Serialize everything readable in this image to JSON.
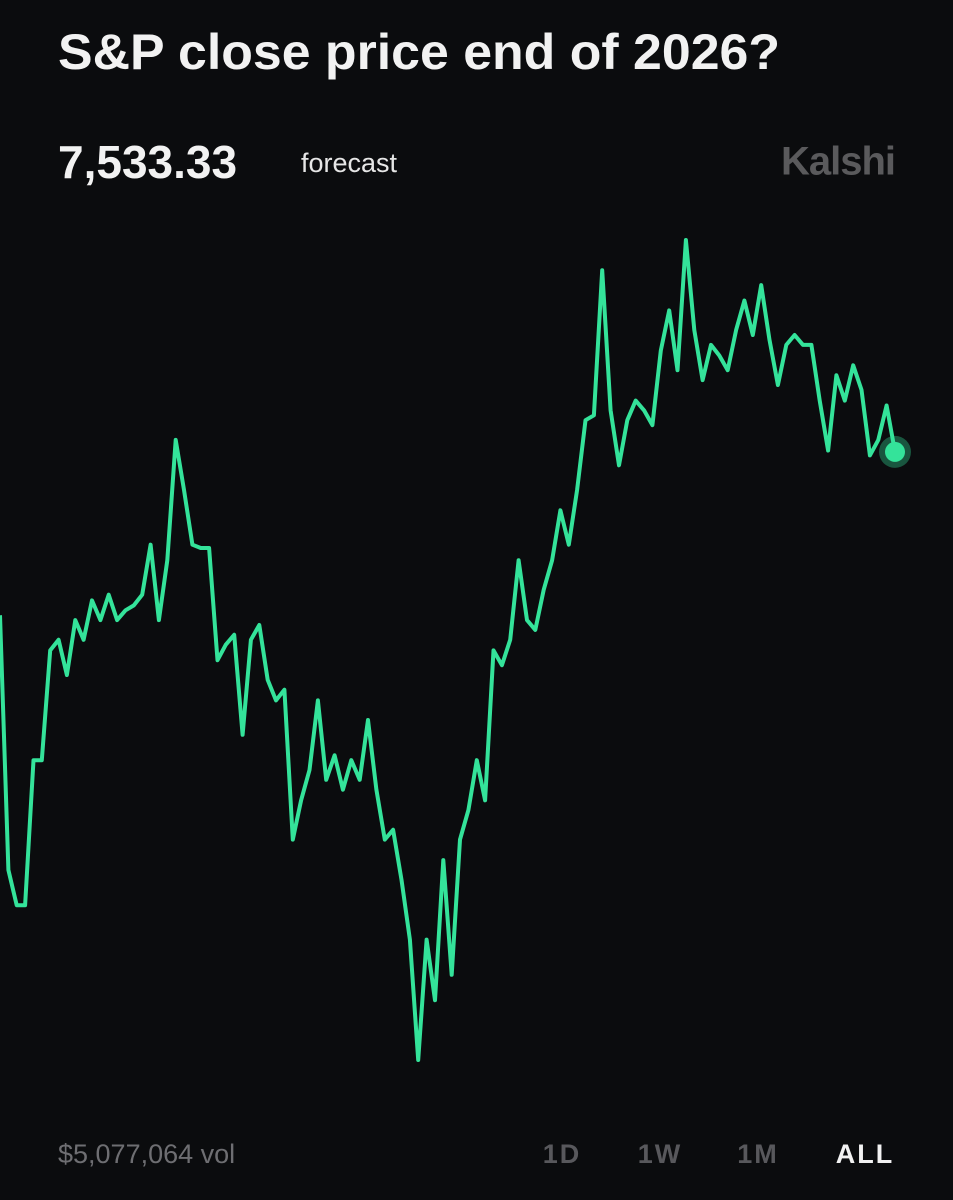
{
  "header": {
    "title": "S&P close price end of 2026?",
    "forecast_value": "7,533.33",
    "forecast_label": "forecast",
    "brand": "Kalshi"
  },
  "chart_data": {
    "type": "line",
    "color": "#34e39a",
    "values": [
      7334,
      7023,
      6980,
      6980,
      7157,
      7157,
      7291,
      7304,
      7261,
      7328,
      7304,
      7352,
      7328,
      7359,
      7328,
      7340,
      7346,
      7359,
      7420,
      7328,
      7401,
      7548,
      7487,
      7420,
      7416,
      7416,
      7279,
      7298,
      7310,
      7188,
      7304,
      7322,
      7255,
      7230,
      7243,
      7060,
      7108,
      7145,
      7230,
      7133,
      7163,
      7121,
      7157,
      7133,
      7206,
      7121,
      7060,
      7072,
      7011,
      6938,
      6791,
      6938,
      6864,
      7035,
      6895,
      7060,
      7096,
      7157,
      7108,
      7291,
      7273,
      7304,
      7401,
      7328,
      7316,
      7365,
      7401,
      7462,
      7420,
      7487,
      7572,
      7578,
      7755,
      7584,
      7517,
      7572,
      7596,
      7584,
      7566,
      7657,
      7706,
      7633,
      7792,
      7682,
      7621,
      7664,
      7651,
      7633,
      7682,
      7718,
      7676,
      7737,
      7670,
      7615,
      7664,
      7676,
      7664,
      7664,
      7596,
      7535,
      7627,
      7596,
      7639,
      7609,
      7529,
      7548,
      7590,
      7533.33
    ]
  },
  "footer": {
    "volume": "$5,077,064 vol",
    "ranges": [
      "1D",
      "1W",
      "1M",
      "ALL"
    ],
    "selected_range": "ALL"
  }
}
